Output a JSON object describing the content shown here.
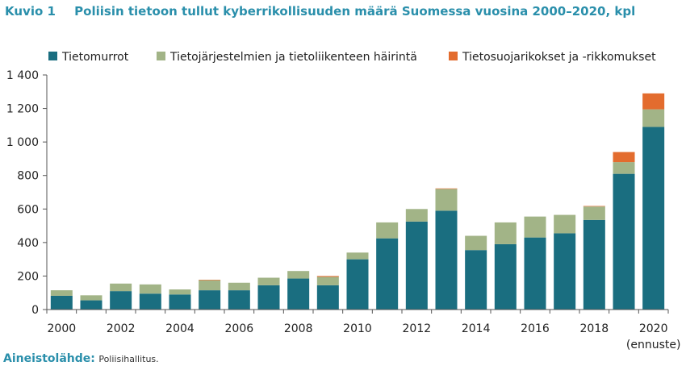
{
  "figure": {
    "number": "Kuvio 1",
    "title": "Poliisin tietoon tullut kyberrikollisuuden määrä Suomessa vuosina 2000–2020, kpl"
  },
  "source": {
    "label": "Aineistolähde:",
    "value": "Poliisihallitus."
  },
  "colors": {
    "tietomurrot": "#1a6e80",
    "hairinta": "#a2b487",
    "tietosuoja": "#e36c2e",
    "title": "#2a8fab"
  },
  "chart_data": {
    "type": "bar",
    "stacked": true,
    "categories": [
      "2000",
      "2001",
      "2002",
      "2003",
      "2004",
      "2005",
      "2006",
      "2007",
      "2008",
      "2009",
      "2010",
      "2011",
      "2012",
      "2013",
      "2014",
      "2015",
      "2016",
      "2017",
      "2018",
      "2019",
      "2020"
    ],
    "x_tick_labels": [
      "2000",
      "2002",
      "2004",
      "2006",
      "2008",
      "2010",
      "2012",
      "2014",
      "2016",
      "2018",
      "2020"
    ],
    "x_note": "(ennuste)",
    "y_ticks": [
      "0",
      "200",
      "400",
      "600",
      "800",
      "1 000",
      "1 200",
      "1 400"
    ],
    "ylim": [
      0,
      1400
    ],
    "grid": false,
    "legend_position": "top",
    "series": [
      {
        "name": "Tietomurrot",
        "values": [
          82,
          55,
          110,
          95,
          90,
          115,
          115,
          145,
          185,
          145,
          300,
          425,
          525,
          590,
          355,
          390,
          430,
          455,
          535,
          810,
          1090
        ]
      },
      {
        "name": "Tietojärjestelmien ja tietoliikenteen häirintä",
        "values": [
          33,
          30,
          45,
          55,
          30,
          60,
          45,
          45,
          45,
          50,
          40,
          95,
          75,
          130,
          85,
          130,
          125,
          110,
          80,
          70,
          105
        ]
      },
      {
        "name": "Tietosuojarikokset ja -rikkomukset",
        "values": [
          0,
          0,
          0,
          0,
          0,
          3,
          0,
          0,
          0,
          5,
          0,
          0,
          0,
          3,
          0,
          0,
          0,
          0,
          3,
          60,
          95
        ]
      }
    ]
  }
}
